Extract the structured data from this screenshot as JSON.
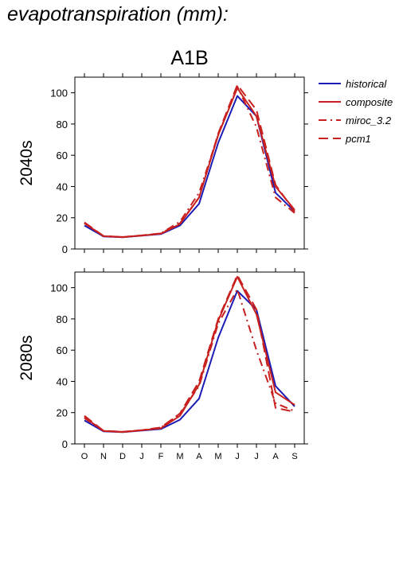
{
  "page": {
    "title": "evapotranspiration (mm):"
  },
  "chart_data": [
    {
      "type": "line",
      "title": "A1B",
      "ylabel": "2040s",
      "xlabel": "",
      "categories": [
        "O",
        "N",
        "D",
        "J",
        "F",
        "M",
        "A",
        "M",
        "J",
        "J",
        "A",
        "S"
      ],
      "ylim": [
        0,
        110
      ],
      "yticks": [
        0,
        20,
        40,
        60,
        80,
        100
      ],
      "grid": false,
      "legend_position": "right",
      "series": [
        {
          "name": "historical",
          "color": "#1c1cb4",
          "dash": "solid",
          "values": [
            15,
            8,
            7.5,
            8.5,
            9.5,
            15,
            29,
            68,
            98,
            85,
            36,
            24
          ]
        },
        {
          "name": "composite",
          "color": "#c8201e",
          "dash": "solid",
          "values": [
            16.5,
            8.2,
            7.6,
            8.6,
            9.8,
            16,
            33,
            73,
            103,
            85,
            40,
            25
          ]
        },
        {
          "name": "miroc_3.2",
          "color": "#c8201e",
          "dash": "dashdot",
          "values": [
            16.5,
            8.3,
            7.7,
            8.7,
            10,
            17.5,
            36,
            73,
            104,
            78,
            33,
            23
          ]
        },
        {
          "name": "pcm1",
          "color": "#c8201e",
          "dash": "dash",
          "values": [
            17,
            8.3,
            7.7,
            8.7,
            10,
            16.5,
            33,
            74,
            105,
            89,
            41,
            24
          ]
        }
      ]
    },
    {
      "type": "line",
      "title": "",
      "ylabel": "2080s",
      "xlabel": "",
      "categories": [
        "O",
        "N",
        "D",
        "J",
        "F",
        "M",
        "A",
        "M",
        "J",
        "J",
        "A",
        "S"
      ],
      "ylim": [
        0,
        110
      ],
      "yticks": [
        0,
        20,
        40,
        60,
        80,
        100
      ],
      "grid": false,
      "series": [
        {
          "name": "historical",
          "color": "#1c1cb4",
          "dash": "solid",
          "values": [
            15,
            8,
            7.5,
            8.5,
            9.5,
            15.5,
            29,
            68,
            98,
            86,
            37,
            24
          ]
        },
        {
          "name": "composite",
          "color": "#c8201e",
          "dash": "solid",
          "values": [
            17,
            8.3,
            7.6,
            8.7,
            10,
            18,
            38,
            79,
            107,
            83,
            33,
            25
          ]
        },
        {
          "name": "miroc_3.2",
          "color": "#c8201e",
          "dash": "dashdot",
          "values": [
            16.5,
            8.3,
            7.7,
            8.8,
            10.5,
            19,
            37,
            77,
            99,
            60,
            26,
            21
          ]
        },
        {
          "name": "pcm1",
          "color": "#c8201e",
          "dash": "dash",
          "values": [
            18,
            8.4,
            7.8,
            8.8,
            10.5,
            19.5,
            40,
            80,
            108,
            86,
            23,
            20.5
          ]
        }
      ]
    }
  ]
}
